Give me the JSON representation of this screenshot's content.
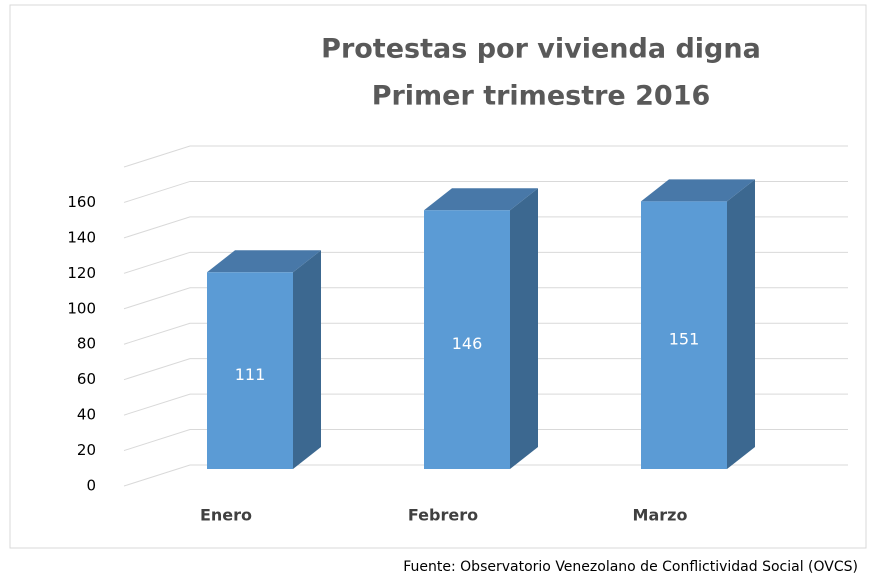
{
  "chart_data": {
    "type": "bar3d",
    "title": [
      "Protestas por vivienda digna",
      "Primer trimestre 2016"
    ],
    "categories": [
      "Enero",
      "Febrero",
      "Marzo"
    ],
    "values": [
      111,
      146,
      151
    ],
    "color": "#5b9bd5",
    "ylim": [
      0,
      180
    ],
    "yticks": [
      0,
      20,
      40,
      60,
      80,
      100,
      120,
      140,
      160
    ],
    "grid": true,
    "source": "Fuente: Observatorio Venezolano de Conflictividad Social (OVCS)"
  }
}
